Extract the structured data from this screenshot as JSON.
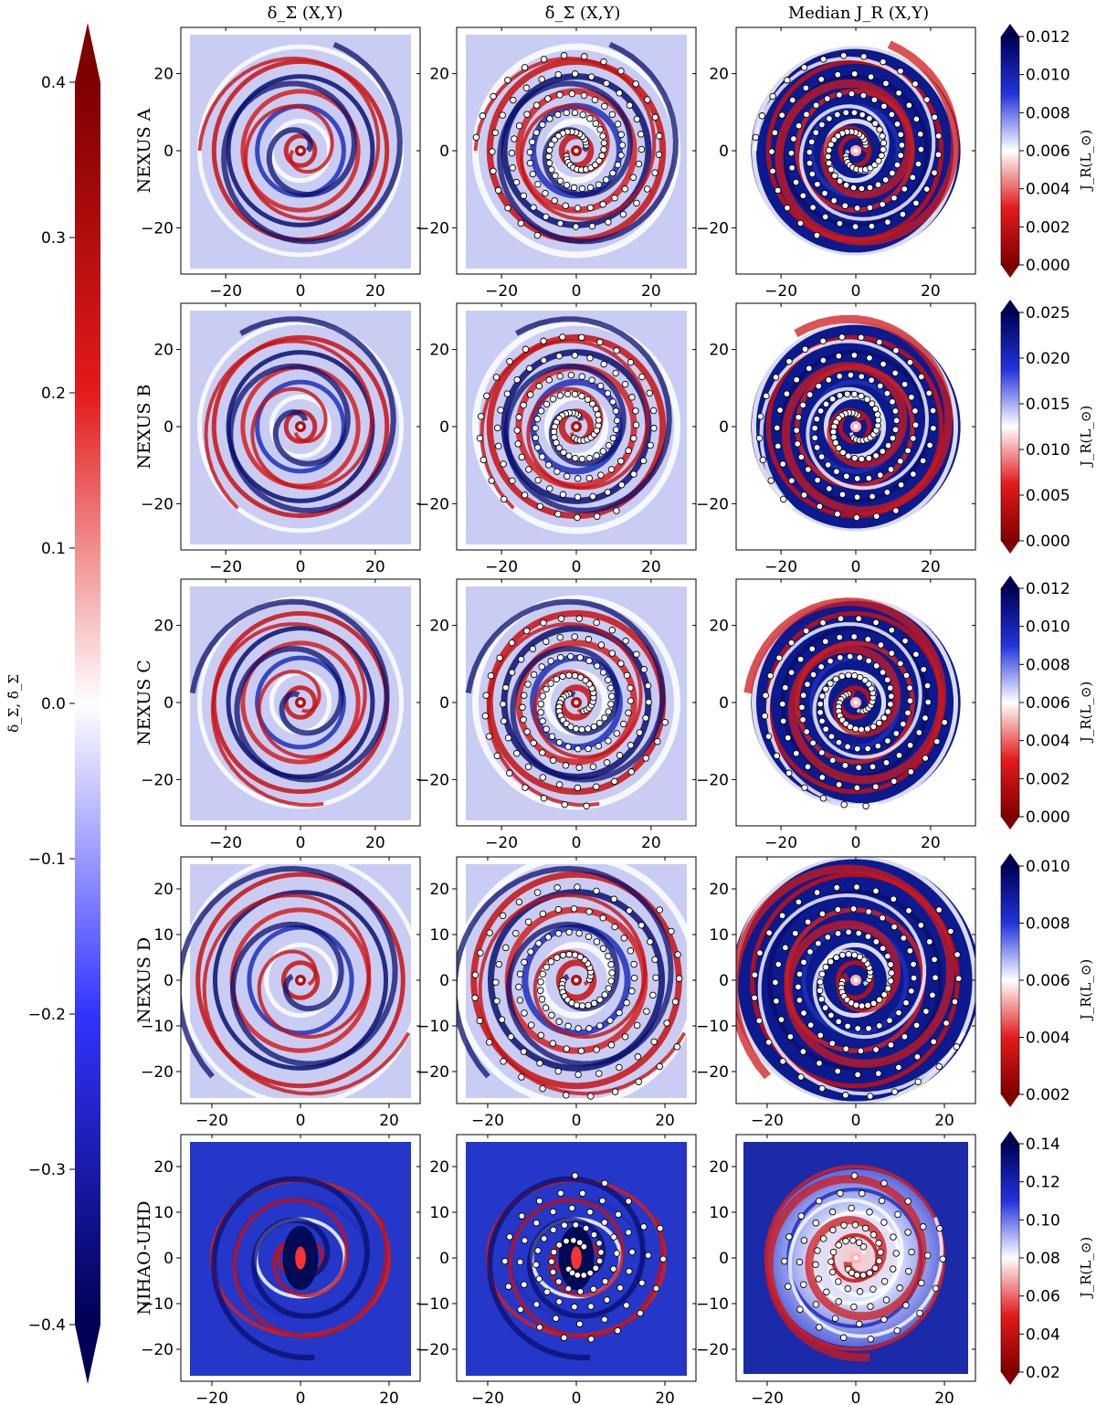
{
  "chart_data": {
    "type": "heatmap",
    "column_titles": [
      "δ_Σ (X,Y)",
      "δ̃_Σ (X,Y)",
      "Median J_R (X,Y)"
    ],
    "main_colorbar": {
      "label": "δ_Σ,  δ̃_Σ",
      "range": [
        -0.4,
        0.4
      ],
      "ticks": [
        "0.4",
        "0.3",
        "0.2",
        "0.1",
        "0.0",
        "−0.1",
        "−0.2",
        "−0.3",
        "−0.4"
      ],
      "colormap": "seismic (navy–white–darkred)"
    },
    "rows": [
      {
        "name": "NEXUS A",
        "xlim": [
          -32,
          32
        ],
        "ylim": [
          -32,
          32
        ],
        "x_ticks": [
          "−20",
          "0",
          "20"
        ],
        "y_ticks": [
          "20",
          "0",
          "−20"
        ],
        "jr_colorbar": {
          "label": "J_R(L_⊙)",
          "range": [
            0.0,
            0.012
          ],
          "ticks": [
            "0.012",
            "0.010",
            "0.008",
            "0.006",
            "0.004",
            "0.002",
            "0.000"
          ]
        }
      },
      {
        "name": "NEXUS B",
        "xlim": [
          -32,
          32
        ],
        "ylim": [
          -32,
          32
        ],
        "x_ticks": [
          "−20",
          "0",
          "20"
        ],
        "y_ticks": [
          "20",
          "0",
          "−20"
        ],
        "jr_colorbar": {
          "label": "J_R(L_⊙)",
          "range": [
            0.0,
            0.025
          ],
          "ticks": [
            "0.025",
            "0.020",
            "0.015",
            "0.010",
            "0.005",
            "0.000"
          ]
        }
      },
      {
        "name": "NEXUS C",
        "xlim": [
          -32,
          32
        ],
        "ylim": [
          -32,
          32
        ],
        "x_ticks": [
          "−20",
          "0",
          "20"
        ],
        "y_ticks": [
          "20",
          "0",
          "−20"
        ],
        "jr_colorbar": {
          "label": "J_R(L_⊙)",
          "range": [
            0.0,
            0.012
          ],
          "ticks": [
            "0.012",
            "0.010",
            "0.008",
            "0.006",
            "0.004",
            "0.002",
            "0.000"
          ]
        }
      },
      {
        "name": "NEXUS D",
        "xlim": [
          -27,
          27
        ],
        "ylim": [
          -27,
          27
        ],
        "x_ticks": [
          "−20",
          "0",
          "20"
        ],
        "y_ticks": [
          "20",
          "10",
          "0",
          "−10",
          "−20"
        ],
        "jr_colorbar": {
          "label": "J_R(L_⊙)",
          "range": [
            0.002,
            0.01
          ],
          "ticks": [
            "0.010",
            "0.008",
            "0.006",
            "0.004",
            "0.002"
          ]
        }
      },
      {
        "name": "NIHAO-UHD",
        "xlim": [
          -27,
          27
        ],
        "ylim": [
          -27,
          27
        ],
        "x_ticks": [
          "−20",
          "0",
          "20"
        ],
        "y_ticks": [
          "20",
          "10",
          "0",
          "−10",
          "−20"
        ],
        "jr_colorbar": {
          "label": "J_R(L_⊙)",
          "range": [
            0.02,
            0.14
          ],
          "ticks": [
            "0.14",
            "0.12",
            "0.10",
            "0.08",
            "0.06",
            "0.04",
            "0.02"
          ]
        }
      }
    ],
    "grid": false
  }
}
